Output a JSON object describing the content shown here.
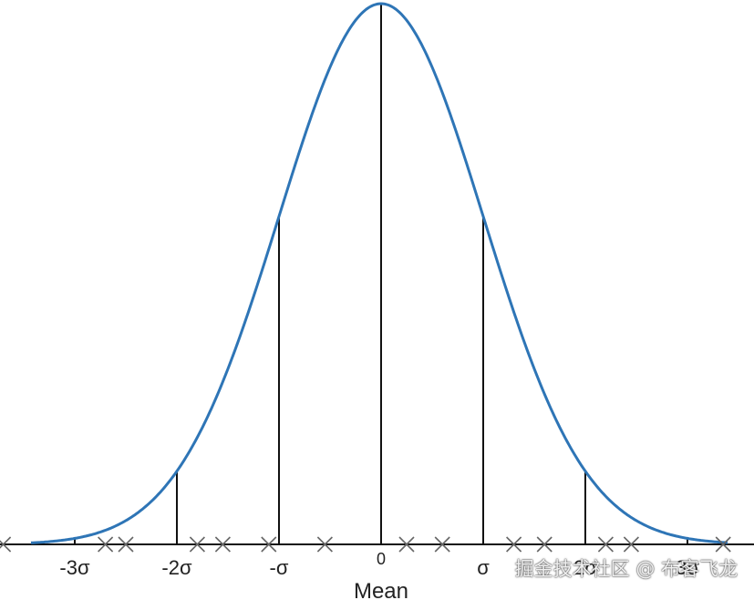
{
  "diagram": {
    "curve_color": "#2e75b6",
    "line_color": "#111111",
    "marker_color": "#666666",
    "sigma_lines": [
      -3,
      -2,
      -1,
      0,
      1,
      2,
      3
    ],
    "labels": [
      {
        "sigma": -3,
        "text": "-3σ"
      },
      {
        "sigma": -2,
        "text": "-2σ"
      },
      {
        "sigma": -1,
        "text": "-σ"
      },
      {
        "sigma": 0,
        "text": "0"
      },
      {
        "sigma": 1,
        "text": "σ"
      },
      {
        "sigma": 2,
        "text": "2σ"
      },
      {
        "sigma": 3,
        "text": "3σ"
      }
    ],
    "mean_label": "Mean",
    "sample_markers": [
      -3.7,
      -2.7,
      -2.5,
      -1.8,
      -1.55,
      -1.1,
      -0.55,
      0.25,
      0.6,
      1.3,
      1.6,
      2.2,
      2.45,
      3.35
    ]
  },
  "watermark": "掘金技术社区 @ 布客飞龙"
}
